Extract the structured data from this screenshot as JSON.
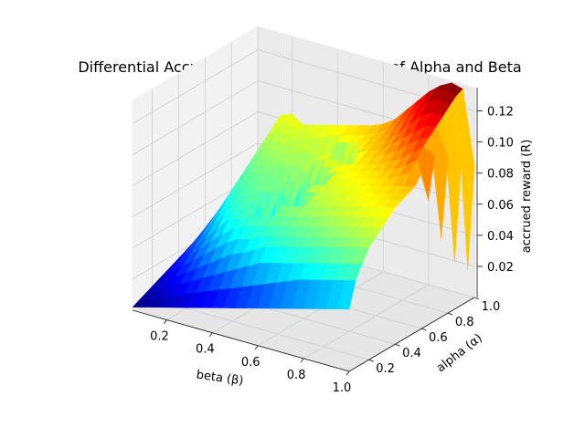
{
  "chart_data": {
    "type": "surface3d",
    "title": "Differential Accrued Reward across values of Alpha and Beta",
    "xlabel": "beta (β)",
    "ylabel": "alpha (α)",
    "zlabel": "accrued reward (R)",
    "xlim": [
      0.05,
      1.0
    ],
    "ylim": [
      0.05,
      1.0
    ],
    "zlim": [
      0.0,
      0.135
    ],
    "x_ticks": [
      0.2,
      0.4,
      0.6,
      0.8,
      1.0
    ],
    "x_tick_labels": [
      "0.2",
      "0.4",
      "0.6",
      "0.8",
      "1.0"
    ],
    "y_ticks": [
      0.2,
      0.4,
      0.6,
      0.8,
      1.0
    ],
    "y_tick_labels": [
      "0.2",
      "0.4",
      "0.6",
      "0.8",
      "1.0"
    ],
    "z_ticks": [
      0.02,
      0.04,
      0.06,
      0.08,
      0.1,
      0.12
    ],
    "z_tick_labels": [
      "0.02",
      "0.04",
      "0.06",
      "0.08",
      "0.10",
      "0.12"
    ],
    "colormap": "jet",
    "grid": true,
    "x": [
      0.05,
      0.1,
      0.15,
      0.2,
      0.25,
      0.3,
      0.35,
      0.4,
      0.45,
      0.5,
      0.55,
      0.6,
      0.65,
      0.7,
      0.75,
      0.8,
      0.85,
      0.9,
      0.95,
      1.0
    ],
    "y": [
      0.05,
      0.1,
      0.15,
      0.2,
      0.25,
      0.3,
      0.35,
      0.4,
      0.45,
      0.5,
      0.55,
      0.6,
      0.65,
      0.7,
      0.75,
      0.8,
      0.85,
      0.9,
      0.95,
      1.0
    ],
    "z": [
      [
        0.002,
        0.004,
        0.006,
        0.008,
        0.01,
        0.012,
        0.014,
        0.016,
        0.018,
        0.02,
        0.022,
        0.024,
        0.026,
        0.028,
        0.03,
        0.032,
        0.034,
        0.036,
        0.038,
        0.04
      ],
      [
        0.004,
        0.007,
        0.01,
        0.013,
        0.016,
        0.019,
        0.022,
        0.025,
        0.028,
        0.031,
        0.034,
        0.037,
        0.04,
        0.043,
        0.046,
        0.049,
        0.052,
        0.055,
        0.058,
        0.061
      ],
      [
        0.006,
        0.01,
        0.014,
        0.018,
        0.022,
        0.026,
        0.03,
        0.034,
        0.038,
        0.042,
        0.046,
        0.05,
        0.054,
        0.058,
        0.062,
        0.066,
        0.07,
        0.074,
        0.078,
        0.082
      ],
      [
        0.008,
        0.013,
        0.018,
        0.023,
        0.028,
        0.033,
        0.038,
        0.043,
        0.048,
        0.053,
        0.058,
        0.061,
        0.064,
        0.067,
        0.07,
        0.073,
        0.076,
        0.079,
        0.082,
        0.085
      ],
      [
        0.01,
        0.016,
        0.022,
        0.028,
        0.034,
        0.04,
        0.046,
        0.052,
        0.056,
        0.06,
        0.062,
        0.064,
        0.066,
        0.068,
        0.07,
        0.072,
        0.074,
        0.076,
        0.078,
        0.08
      ],
      [
        0.012,
        0.019,
        0.026,
        0.033,
        0.04,
        0.047,
        0.054,
        0.058,
        0.06,
        0.062,
        0.064,
        0.066,
        0.068,
        0.07,
        0.072,
        0.074,
        0.076,
        0.078,
        0.08,
        0.082
      ],
      [
        0.014,
        0.022,
        0.03,
        0.038,
        0.046,
        0.052,
        0.056,
        0.06,
        0.062,
        0.066,
        0.065,
        0.07,
        0.06,
        0.072,
        0.07,
        0.076,
        0.074,
        0.08,
        0.078,
        0.084
      ],
      [
        0.016,
        0.025,
        0.034,
        0.043,
        0.05,
        0.056,
        0.06,
        0.064,
        0.05,
        0.068,
        0.07,
        0.058,
        0.072,
        0.074,
        0.066,
        0.078,
        0.08,
        0.07,
        0.082,
        0.086
      ],
      [
        0.018,
        0.028,
        0.038,
        0.046,
        0.052,
        0.058,
        0.062,
        0.04,
        0.066,
        0.07,
        0.055,
        0.074,
        0.076,
        0.06,
        0.078,
        0.08,
        0.068,
        0.082,
        0.084,
        0.088
      ],
      [
        0.02,
        0.031,
        0.042,
        0.05,
        0.056,
        0.06,
        0.064,
        0.068,
        0.07,
        0.035,
        0.074,
        0.076,
        0.05,
        0.078,
        0.08,
        0.082,
        0.06,
        0.084,
        0.086,
        0.09
      ],
      [
        0.022,
        0.034,
        0.046,
        0.054,
        0.058,
        0.062,
        0.066,
        0.07,
        0.045,
        0.074,
        0.076,
        0.04,
        0.078,
        0.08,
        0.082,
        0.055,
        0.084,
        0.086,
        0.088,
        0.092
      ],
      [
        0.024,
        0.037,
        0.048,
        0.056,
        0.06,
        0.064,
        0.068,
        0.072,
        0.074,
        0.076,
        0.078,
        0.08,
        0.082,
        0.084,
        0.07,
        0.086,
        0.088,
        0.09,
        0.092,
        0.095
      ],
      [
        0.026,
        0.04,
        0.05,
        0.058,
        0.062,
        0.066,
        0.07,
        0.074,
        0.076,
        0.078,
        0.08,
        0.082,
        0.084,
        0.086,
        0.088,
        0.09,
        0.092,
        0.094,
        0.096,
        0.1
      ],
      [
        0.028,
        0.043,
        0.052,
        0.06,
        0.064,
        0.068,
        0.072,
        0.076,
        0.078,
        0.08,
        0.082,
        0.084,
        0.086,
        0.088,
        0.09,
        0.092,
        0.096,
        0.1,
        0.104,
        0.108
      ],
      [
        0.03,
        0.046,
        0.054,
        0.062,
        0.066,
        0.07,
        0.074,
        0.078,
        0.08,
        0.082,
        0.084,
        0.086,
        0.088,
        0.09,
        0.094,
        0.098,
        0.102,
        0.108,
        0.112,
        0.116
      ],
      [
        0.032,
        0.048,
        0.056,
        0.064,
        0.068,
        0.072,
        0.076,
        0.08,
        0.082,
        0.084,
        0.086,
        0.088,
        0.09,
        0.094,
        0.098,
        0.104,
        0.11,
        0.116,
        0.12,
        0.124
      ],
      [
        0.034,
        0.05,
        0.058,
        0.066,
        0.07,
        0.074,
        0.078,
        0.082,
        0.084,
        0.086,
        0.088,
        0.09,
        0.094,
        0.098,
        0.104,
        0.11,
        0.118,
        0.124,
        0.128,
        0.13
      ],
      [
        0.036,
        0.052,
        0.06,
        0.068,
        0.072,
        0.076,
        0.08,
        0.084,
        0.086,
        0.088,
        0.09,
        0.094,
        0.098,
        0.104,
        0.11,
        0.116,
        0.122,
        0.128,
        0.132,
        0.134
      ],
      [
        0.038,
        0.054,
        0.062,
        0.07,
        0.074,
        0.078,
        0.082,
        0.086,
        0.088,
        0.09,
        0.092,
        0.098,
        0.104,
        0.11,
        0.114,
        0.118,
        0.122,
        0.126,
        0.13,
        0.132
      ],
      [
        0.04,
        0.056,
        0.064,
        0.072,
        0.076,
        0.08,
        0.084,
        0.088,
        0.09,
        0.092,
        0.094,
        0.1,
        0.08,
        0.106,
        0.05,
        0.1,
        0.03,
        0.09,
        0.02,
        0.085
      ]
    ]
  }
}
